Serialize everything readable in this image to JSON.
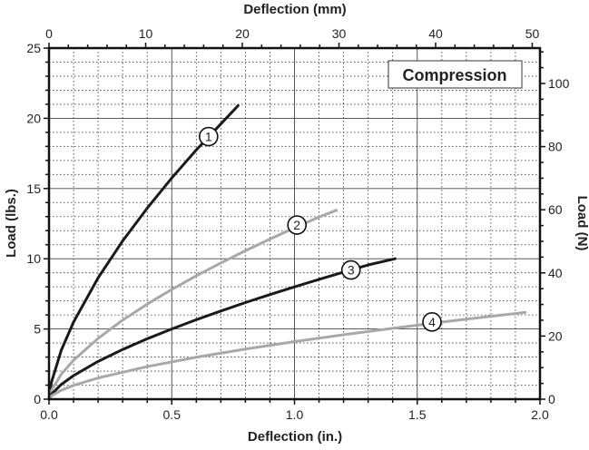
{
  "chart_data": {
    "type": "line",
    "title": "",
    "xlabel": "Deflection (in.)",
    "ylabel": "Load (lbs.)",
    "x2label": "Deflection (mm)",
    "y2label": "Load (N)",
    "xlim": [
      0,
      2.0
    ],
    "ylim": [
      0,
      25
    ],
    "x2lim": [
      0,
      50.8
    ],
    "y2lim": [
      0,
      111.2
    ],
    "xticks": [
      "0.0",
      "0.5",
      "1.0",
      "1.5",
      "2.0"
    ],
    "yticks": [
      "0",
      "5",
      "10",
      "15",
      "20",
      "25"
    ],
    "x2ticks": [
      "0",
      "10",
      "20",
      "30",
      "40",
      "50"
    ],
    "y2ticks": [
      "0",
      "20",
      "40",
      "60",
      "80",
      "100"
    ],
    "grid": true,
    "legend_box": "Compression",
    "series": [
      {
        "label": "1",
        "color": "#1a1a1a",
        "label_at": [
          0.65,
          18.7
        ],
        "x": [
          0,
          0.01,
          0.05,
          0.1,
          0.2,
          0.3,
          0.4,
          0.5,
          0.6,
          0.7,
          0.77
        ],
        "y": [
          0,
          1.21,
          3.49,
          5.49,
          8.64,
          11.27,
          13.6,
          15.75,
          17.75,
          19.6,
          20.9
        ]
      },
      {
        "label": "2",
        "color": "#a8a8a8",
        "label_at": [
          1.01,
          12.4
        ],
        "x": [
          0,
          0.01,
          0.05,
          0.1,
          0.2,
          0.3,
          0.4,
          0.5,
          0.6,
          0.7,
          0.8,
          0.9,
          1.0,
          1.1,
          1.17
        ],
        "y": [
          0,
          0.63,
          1.78,
          2.78,
          4.33,
          5.63,
          6.77,
          7.81,
          8.78,
          9.7,
          10.57,
          11.4,
          12.2,
          12.97,
          13.45
        ]
      },
      {
        "label": "3",
        "color": "#1a1a1a",
        "label_at": [
          1.23,
          9.2
        ],
        "x": [
          0,
          0.01,
          0.05,
          0.1,
          0.2,
          0.3,
          0.4,
          0.5,
          0.6,
          0.7,
          0.8,
          0.9,
          1.0,
          1.1,
          1.2,
          1.3,
          1.41
        ],
        "y": [
          0,
          0.35,
          1.05,
          1.68,
          2.69,
          3.54,
          4.3,
          5.0,
          5.66,
          6.28,
          6.88,
          7.45,
          8.0,
          8.53,
          9.05,
          9.56,
          10.0
        ]
      },
      {
        "label": "4",
        "color": "#a8a8a8",
        "label_at": [
          1.56,
          5.5
        ],
        "x": [
          0,
          0.01,
          0.05,
          0.1,
          0.2,
          0.4,
          0.6,
          0.8,
          1.0,
          1.2,
          1.4,
          1.6,
          1.8,
          1.94
        ],
        "y": [
          0,
          0.24,
          0.64,
          0.98,
          1.51,
          2.32,
          2.99,
          3.57,
          4.1,
          4.59,
          5.05,
          5.49,
          5.9,
          6.18
        ]
      }
    ]
  }
}
